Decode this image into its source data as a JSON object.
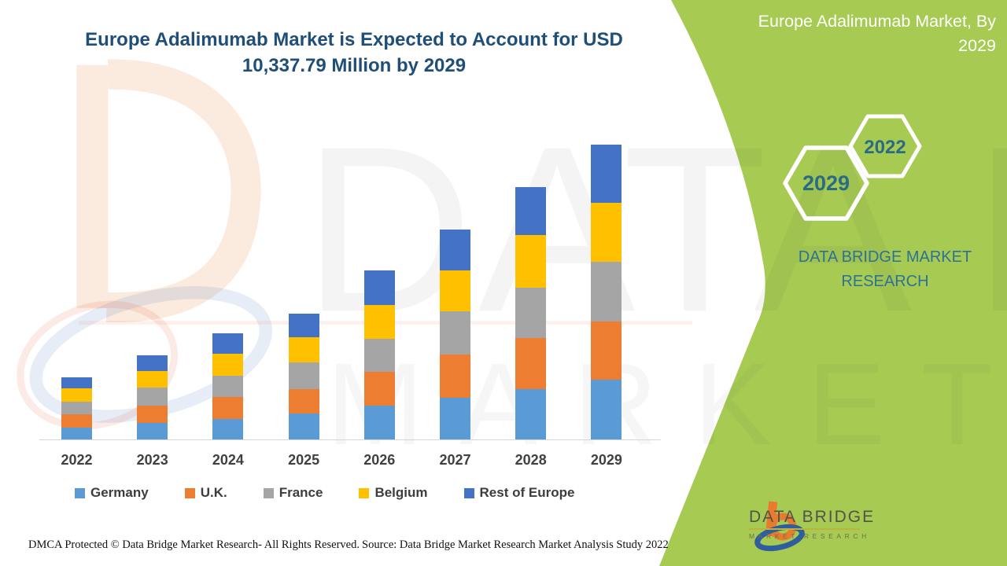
{
  "header": {
    "title_lines": [
      "Europe Adalimumab Market is Expected to Account for USD",
      "10,337.79 Million by 2029"
    ],
    "title_color": "#1f4e79"
  },
  "side_panel": {
    "bg_color": "#a6ca52",
    "title_lines": [
      "Europe Adalimumab Market, By",
      "2029"
    ],
    "hexagons": [
      {
        "label": "2029"
      },
      {
        "label": "2022"
      }
    ],
    "hexagon_text_color": "#2a6b85",
    "brand_lines": [
      "DATA BRIDGE MARKET",
      "RESEARCH"
    ],
    "brand_color": "#2d7295"
  },
  "watermark": {
    "line1": "DATA BRIDGE",
    "line2": "MARKET RESEARCH"
  },
  "chart_data": {
    "type": "bar",
    "stacked": true,
    "title": "Europe Adalimumab Market is Expected to Account for USD 10,337.79 Million by 2029",
    "unit": "USD Million",
    "categories": [
      "2022",
      "2023",
      "2024",
      "2025",
      "2026",
      "2027",
      "2028",
      "2029"
    ],
    "series": [
      {
        "name": "Germany",
        "color": "#5B9BD5",
        "values": [
          414,
          579,
          717,
          910,
          1185,
          1461,
          1764,
          2095
        ]
      },
      {
        "name": "U.K.",
        "color": "#ED7D31",
        "values": [
          469,
          607,
          772,
          855,
          1185,
          1516,
          1792,
          2040
        ]
      },
      {
        "name": "France",
        "color": "#A5A5A5",
        "values": [
          441,
          634,
          744,
          937,
          1158,
          1516,
          1764,
          2095
        ]
      },
      {
        "name": "Belgium",
        "color": "#FFC000",
        "values": [
          469,
          579,
          772,
          882,
          1185,
          1434,
          1847,
          2068
        ]
      },
      {
        "name": "Rest of Europe",
        "color": "#4472C4",
        "values": [
          386,
          551,
          717,
          827,
          1213,
          1434,
          1682,
          2040
        ]
      }
    ],
    "totals_estimated": [
      2179,
      2950,
      3722,
      4411,
      5926,
      7361,
      8849,
      10338
    ],
    "annotation": "2029 total anchored to USD 10,337.79 Million stated in title; per-segment values estimated from bar heights (no y-axis shown)",
    "y_axis_visible": false,
    "gridlines": false,
    "legend_position": "bottom"
  },
  "footer": {
    "left": "DMCA Protected © Data Bridge Market Research- All Rights Reserved.",
    "right": "Source: Data Bridge Market Research Market Analysis Study 2022"
  },
  "logo": {
    "name_top": "DATA BRIDGE",
    "name_bottom": "MARKET RESEARCH"
  }
}
